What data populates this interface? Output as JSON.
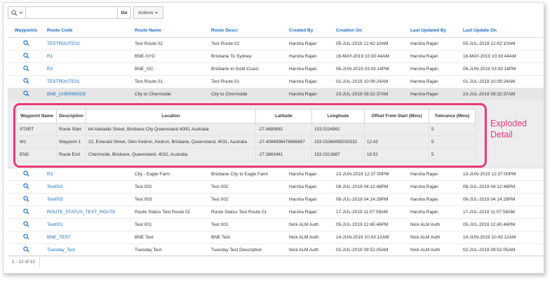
{
  "toolbar": {
    "search_value": "",
    "go_label": "Go",
    "actions_label": "Actions"
  },
  "columns": [
    "Waypoints",
    "Route Code",
    "Route Name",
    "Route Descr",
    "Created By",
    "Creation On",
    "Last Updated By",
    "Last Update On"
  ],
  "rows_top": [
    {
      "code": "TESTROUTE02",
      "name": "Test Route 02",
      "descr": "Test Route 02",
      "created_by": "Harsha Rajan",
      "created_on": "05-JUL-2019 12:42:10AM",
      "updated_by": "Harsha Rajan",
      "updated_on": "05-JUL-2019 12:42:10AM"
    },
    {
      "code": "R1",
      "name": "BNE-SYD",
      "descr": "Brisbane To Sydney",
      "created_by": "Harsha Rajan",
      "created_on": "16-MAY-2019 10:30:44AM",
      "updated_by": "Harsha Rajan",
      "updated_on": "16-MAY-2019 10:30:44AM"
    },
    {
      "code": "R2",
      "name": "BNE_GC",
      "descr": "Brisbane to Gold Coast",
      "created_by": "Harsha Rajan",
      "created_on": "06-JUN-2019 03:43:14PM",
      "updated_by": "Harsha Rajan",
      "updated_on": "06-JUN-2019 03:43:14PM"
    },
    {
      "code": "TESTROUTE01",
      "name": "Test Route 01",
      "descr": "Test Route 01",
      "created_by": "Harsha Rajan",
      "created_on": "01-JUL-2019 10:09:24AM",
      "updated_by": "Harsha Rajan",
      "updated_on": "01-JUL-2019 10:09:24AM"
    }
  ],
  "expanded_row": {
    "code": "BNE_CHERMSIDE",
    "name": "City to Chermside",
    "descr": "City to Chermside",
    "created_by": "Harsha Rajan",
    "created_on": "23-JUL-2019 09:32:37AM",
    "updated_by": "Harsha Rajan",
    "updated_on": "23-JUL-2019 09:32:37AM"
  },
  "detail": {
    "columns": [
      "Waypoint Name",
      "Description",
      "Location",
      "Latitude",
      "Longitude",
      "Offset From Start (Mins)",
      "Tolerance (Mins)"
    ],
    "rows": [
      {
        "name": "START",
        "desc": "Route Start",
        "location": "64 Adelaide Street, Brisbane City Queensland 4000, Australia",
        "lat": "-27.4689682",
        "lng": "153.0234991",
        "offset": "",
        "tolerance": "5"
      },
      {
        "name": "W1",
        "desc": "Waypoint 1",
        "location": "22, Emerald Street, Glen Kedron, Kedron, Brisbane, Queensland, 4031, Australia",
        "lat": "-27.4084998478866867",
        "lng": "153.03366065025332",
        "offset": "12.43",
        "tolerance": "5"
      },
      {
        "name": "END",
        "desc": "Route End",
        "location": "Chermside, Brisbane, Queensland, 4032, Australia",
        "lat": "-27.3863441",
        "lng": "153.0313687",
        "offset": "18.52",
        "tolerance": "5"
      }
    ],
    "annotation_line1": "Exploded",
    "annotation_line2": "Detail",
    "highlight_color": "#e8387a"
  },
  "rows_bottom": [
    {
      "code": "R3",
      "name": "City - Eagle Farm",
      "descr": "Brisbane City to Eagle Farm",
      "created_by": "Harsha Rajan",
      "created_on": "13-JUN-2019 12:37:00PM",
      "updated_by": "Harsha Rajan",
      "updated_on": "13-JUN-2019 12:37:00PM"
    },
    {
      "code": "Test002",
      "name": "Test 002",
      "descr": "Test 002",
      "created_by": "Harsha Rajan",
      "created_on": "08-JUL-2019 04:12:46PM",
      "updated_by": "Harsha Rajan",
      "updated_on": "08-JUL-2019 04:12:46PM"
    },
    {
      "code": "Test003",
      "name": "Test 003",
      "descr": "Test 002",
      "created_by": "Harsha Rajan",
      "created_on": "08-JUL-2019 04:14:28PM",
      "updated_by": "Harsha Rajan",
      "updated_on": "08-JUL-2019 04:14:28PM"
    },
    {
      "code": "ROUTE_STATUS_TEST_ROUTE",
      "name": "Route Status Test Route 01",
      "descr": "Route Status Test Route 01",
      "created_by": "Harsha Rajan",
      "created_on": "17-JUL-2019 11:07:59AM",
      "updated_by": "Harsha Rajan",
      "updated_on": "17-JUL-2019 11:07:59AM"
    },
    {
      "code": "Test001",
      "name": "Test 001",
      "descr": "Test 001",
      "created_by": "Nick ALM Auth",
      "created_on": "05-JUL-2019 12:45:46PM",
      "updated_by": "Nick ALM Auth",
      "updated_on": "05-JUL-2019 12:45:46PM"
    },
    {
      "code": "BNE_TEST",
      "name": "BNE Test",
      "descr": "BNE Test",
      "created_by": "Nick ALM Auth",
      "created_on": "14-JUN-2019 10:43:12AM",
      "updated_by": "Nick ALM Auth",
      "updated_on": "14-JUN-2019 10:43:12AM"
    },
    {
      "code": "Tuesday_Test",
      "name": "Tuesday Test",
      "descr": "Tuesday Test Description",
      "created_by": "Nick ALM Auth",
      "created_on": "02-JUL-2019 09:52:05AM",
      "updated_by": "Nick ALM Auth",
      "updated_on": "02-JUL-2019 09:52:05AM"
    }
  ],
  "pagination": "1 - 12 of 12",
  "icons": {
    "search": "search-icon",
    "chevron": "chevron-down-icon",
    "waypoint": "magnifier-icon"
  },
  "colors": {
    "link": "#1a6ec4",
    "highlight": "#e8387a"
  }
}
